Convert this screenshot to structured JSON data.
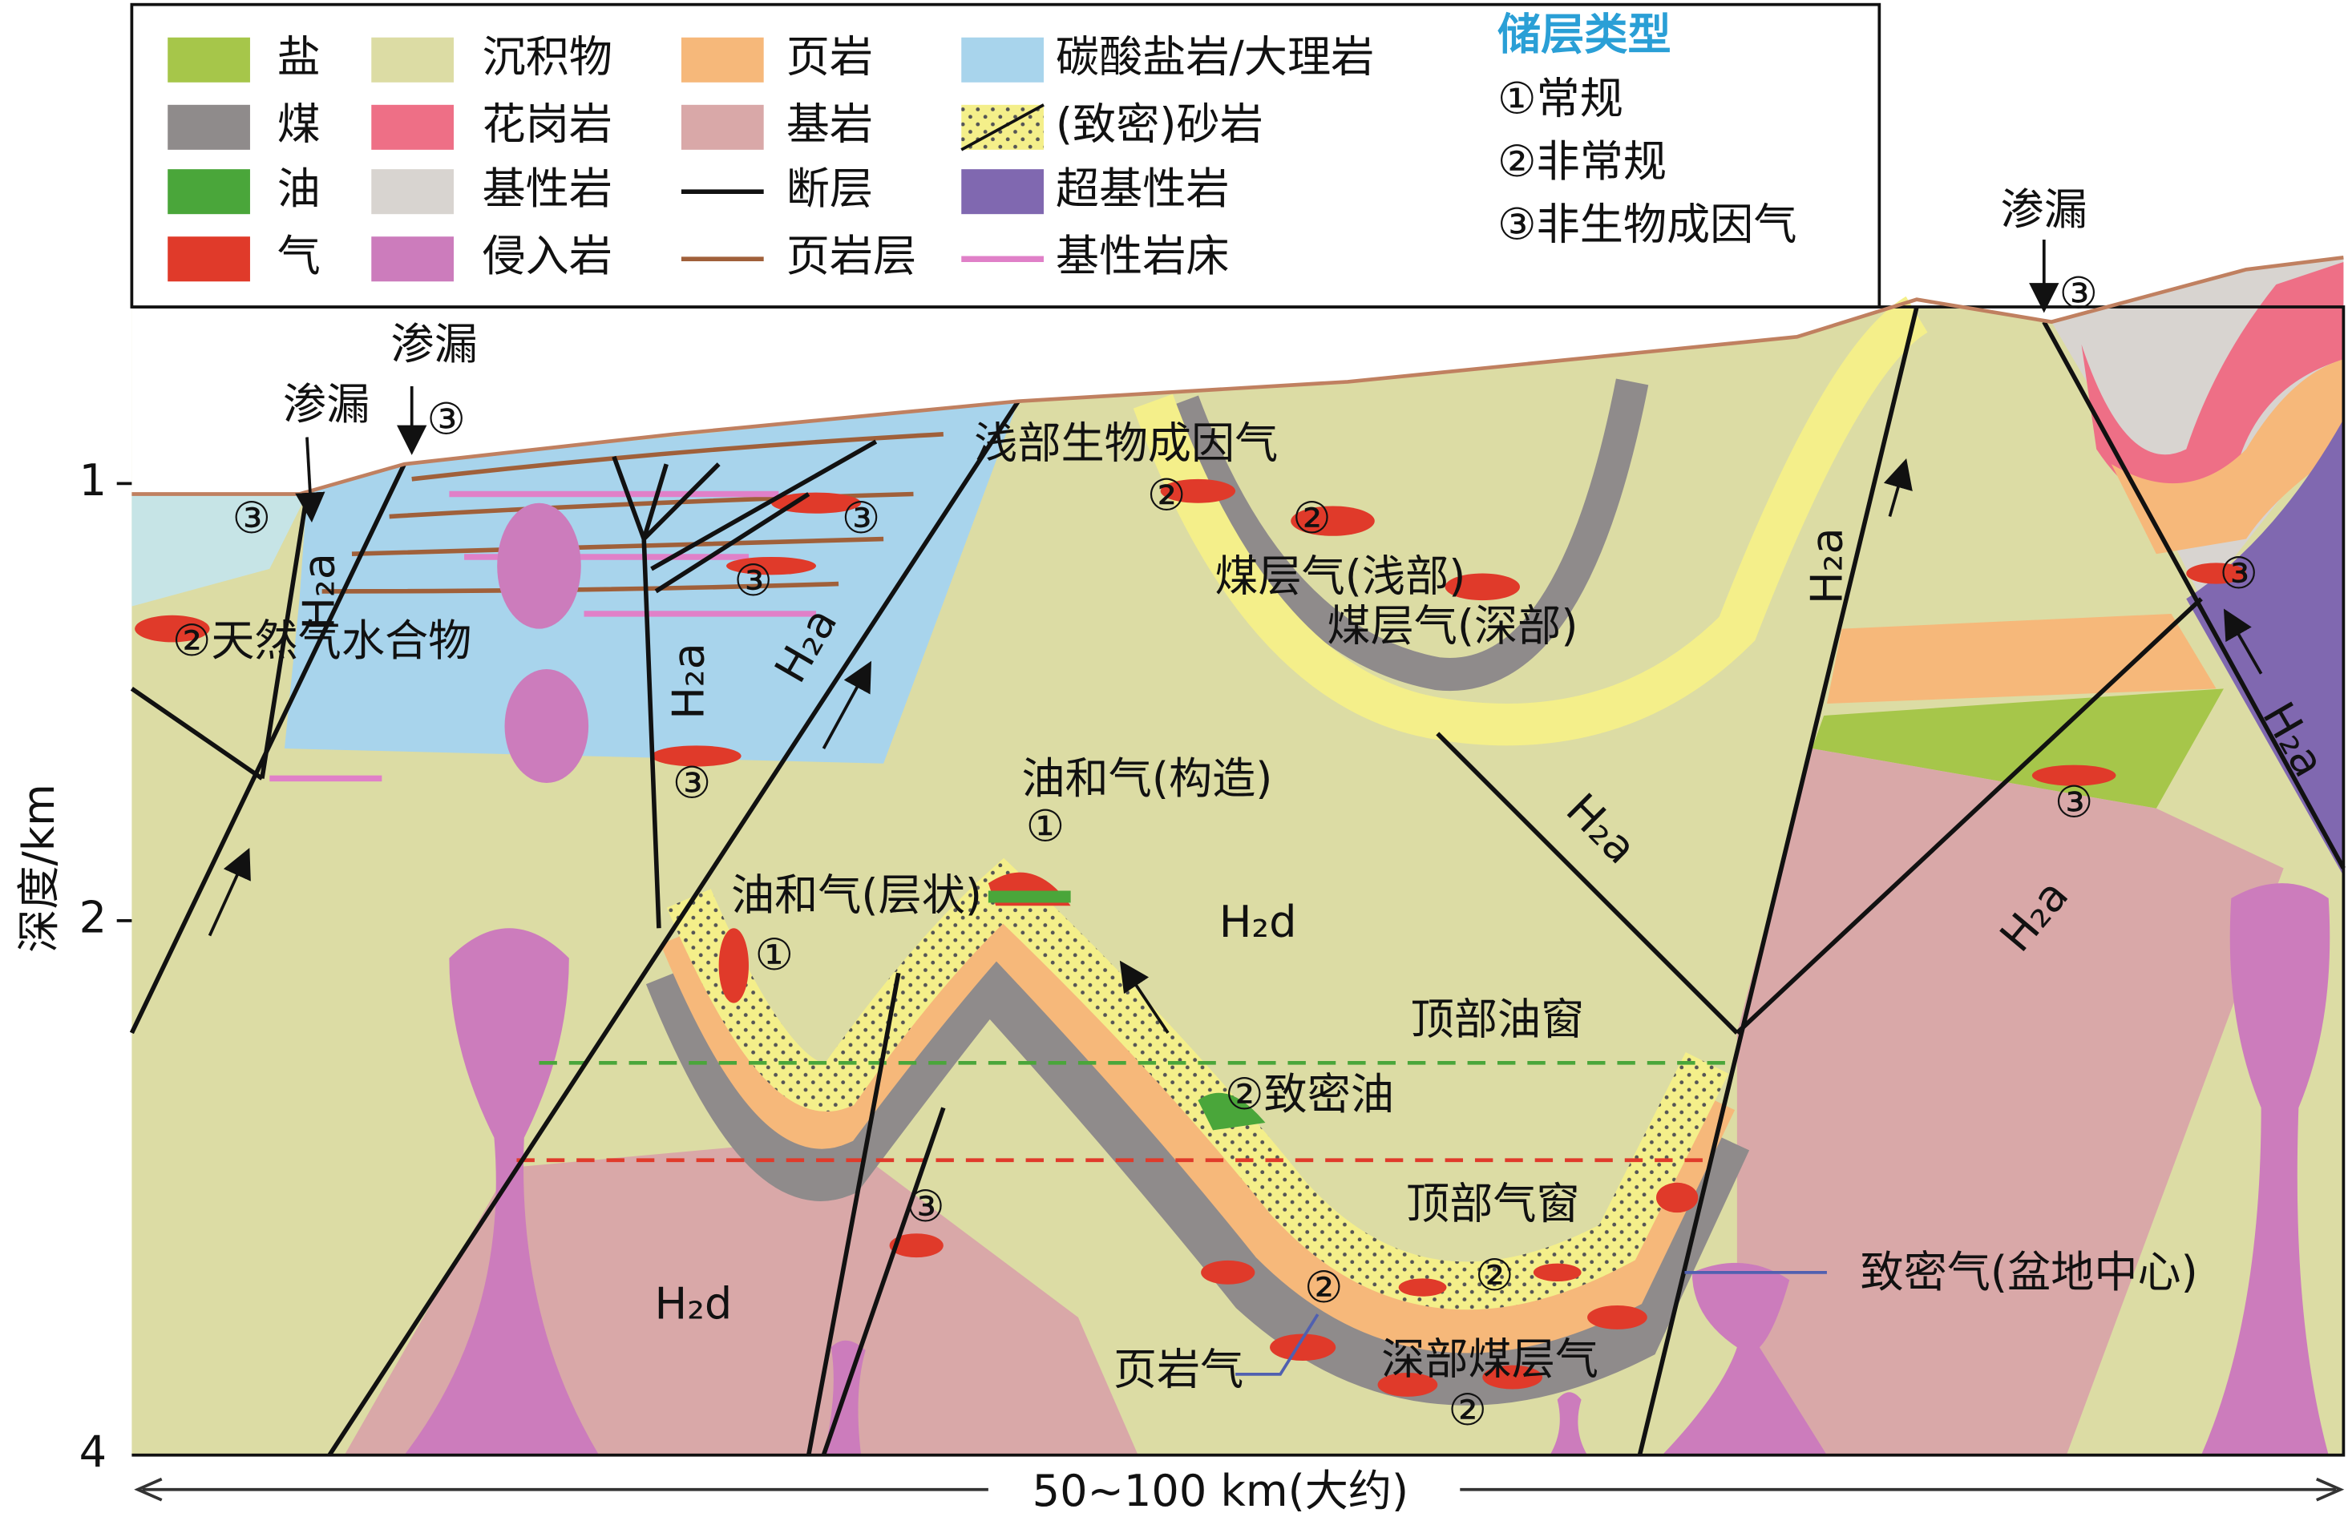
{
  "legend": {
    "items": [
      "盐",
      "煤",
      "油",
      "气",
      "沉积物",
      "花岗岩",
      "基性岩",
      "侵入岩",
      "页岩",
      "基岩",
      "断层",
      "页岩层",
      "碳酸盐岩/大理岩",
      "(致密)砂岩",
      "超基性岩",
      "基性岩床"
    ]
  },
  "reservoir_types": {
    "title": "储层类型",
    "items": [
      "①常规",
      "②非常规",
      "③非生物成因气"
    ]
  },
  "annotations": [
    "渗漏",
    "渗漏",
    "渗漏",
    "③",
    "③",
    "③",
    "③",
    "③",
    "③",
    "③",
    "③",
    "③",
    "①",
    "①",
    "②",
    "②",
    "②天然气水合物",
    "浅部生物成因气",
    "煤层气(浅部)",
    "煤层气(深部)",
    "油和气(构造)",
    "油和气(层状)",
    "H₂d",
    "H₂d",
    "顶部油窗",
    "②致密油",
    "顶部气窗",
    "致密气(盆地中心)",
    "②",
    "②",
    "页岩气",
    "深部煤层气",
    "②",
    "H₂a",
    "H₂a",
    "H₂a",
    "H₂a",
    "H₂a",
    "H₂a",
    "H₂a"
  ],
  "axis": {
    "title": "深度/km",
    "ticks": [
      1,
      2,
      4
    ]
  },
  "scale": "50~100 km(大约)"
}
